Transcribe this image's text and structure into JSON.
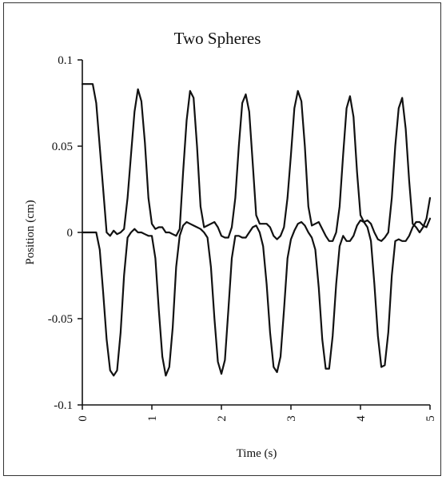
{
  "chart_data": {
    "type": "line",
    "title": "Two Spheres",
    "xlabel": "Time (s)",
    "ylabel": "Position (cm)",
    "xlim": [
      0,
      5
    ],
    "ylim": [
      -0.1,
      0.1
    ],
    "x_ticks": [
      0,
      1,
      2,
      3,
      4,
      5
    ],
    "x_tick_labels": [
      "0",
      "1",
      "2",
      "3",
      "4",
      "5"
    ],
    "y_ticks": [
      0.1,
      0.05,
      0,
      -0.05,
      -0.1
    ],
    "y_tick_labels": [
      "0.1",
      "0.05",
      "0",
      "-0.05",
      "-0.1"
    ],
    "grid": false,
    "line_color": "#111111",
    "series": [
      {
        "x": [
          0,
          0.15,
          0.2,
          0.3,
          0.35,
          0.4,
          0.45,
          0.5,
          0.55,
          0.6,
          0.65,
          0.7,
          0.75,
          0.8,
          0.85,
          0.9,
          0.95,
          1.0,
          1.05,
          1.1,
          1.15,
          1.2,
          1.25,
          1.3,
          1.35,
          1.4,
          1.45,
          1.5,
          1.55,
          1.6,
          1.65,
          1.7,
          1.75,
          1.8,
          1.85,
          1.9,
          1.95,
          2.0,
          2.05,
          2.1,
          2.15,
          2.2,
          2.25,
          2.3,
          2.35,
          2.4,
          2.45,
          2.5,
          2.55,
          2.6,
          2.65,
          2.7,
          2.75,
          2.8,
          2.85,
          2.9,
          2.95,
          3.0,
          3.05,
          3.1,
          3.15,
          3.2,
          3.25,
          3.3,
          3.35,
          3.4,
          3.45,
          3.5,
          3.55,
          3.6,
          3.65,
          3.7,
          3.75,
          3.8,
          3.85,
          3.9,
          3.95,
          4.0,
          4.05,
          4.1,
          4.15,
          4.2,
          4.25,
          4.3,
          4.35,
          4.4,
          4.45,
          4.5,
          4.55,
          4.6,
          4.65,
          4.7,
          4.75,
          4.8,
          4.85,
          4.9,
          4.95,
          5.0
        ],
        "y": [
          0.086,
          0.086,
          0.075,
          0.025,
          0.0,
          -0.002,
          0.001,
          -0.001,
          0.0,
          0.002,
          0.02,
          0.045,
          0.07,
          0.083,
          0.076,
          0.052,
          0.02,
          0.005,
          0.002,
          0.003,
          0.003,
          0.0,
          0.0,
          -0.001,
          -0.002,
          0.002,
          0.035,
          0.065,
          0.082,
          0.078,
          0.05,
          0.015,
          0.003,
          0.004,
          0.005,
          0.006,
          0.003,
          -0.002,
          -0.003,
          -0.003,
          0.003,
          0.02,
          0.05,
          0.075,
          0.08,
          0.07,
          0.04,
          0.01,
          0.005,
          0.005,
          0.005,
          0.003,
          -0.002,
          -0.004,
          -0.002,
          0.003,
          0.02,
          0.045,
          0.072,
          0.082,
          0.076,
          0.05,
          0.015,
          0.004,
          0.005,
          0.006,
          0.002,
          -0.002,
          -0.005,
          -0.005,
          0.0,
          0.015,
          0.045,
          0.072,
          0.079,
          0.067,
          0.035,
          0.01,
          0.006,
          0.007,
          0.005,
          0.0,
          -0.004,
          -0.005,
          -0.003,
          0.0,
          0.02,
          0.05,
          0.072,
          0.078,
          0.06,
          0.03,
          0.005,
          0.003,
          0.0,
          0.003,
          0.008,
          0.02
        ]
      },
      {
        "x": [
          0,
          0.2,
          0.25,
          0.3,
          0.35,
          0.4,
          0.45,
          0.5,
          0.55,
          0.6,
          0.65,
          0.7,
          0.75,
          0.8,
          0.85,
          0.9,
          0.95,
          1.0,
          1.05,
          1.1,
          1.15,
          1.2,
          1.25,
          1.3,
          1.35,
          1.4,
          1.45,
          1.5,
          1.55,
          1.6,
          1.65,
          1.7,
          1.75,
          1.8,
          1.85,
          1.9,
          1.95,
          2.0,
          2.05,
          2.1,
          2.15,
          2.2,
          2.25,
          2.3,
          2.35,
          2.4,
          2.45,
          2.5,
          2.55,
          2.6,
          2.65,
          2.7,
          2.75,
          2.8,
          2.85,
          2.9,
          2.95,
          3.0,
          3.05,
          3.1,
          3.15,
          3.2,
          3.25,
          3.3,
          3.35,
          3.4,
          3.45,
          3.5,
          3.55,
          3.6,
          3.65,
          3.7,
          3.75,
          3.8,
          3.85,
          3.9,
          3.95,
          4.0,
          4.05,
          4.1,
          4.15,
          4.2,
          4.25,
          4.3,
          4.35,
          4.4,
          4.45,
          4.5,
          4.55,
          4.6,
          4.65,
          4.7,
          4.75,
          4.8,
          4.85,
          4.9,
          4.95,
          5.0
        ],
        "y": [
          0.0,
          0.0,
          -0.01,
          -0.035,
          -0.062,
          -0.08,
          -0.083,
          -0.08,
          -0.058,
          -0.025,
          -0.003,
          0.0,
          0.002,
          0.0,
          0.0,
          -0.001,
          -0.002,
          -0.002,
          -0.015,
          -0.045,
          -0.072,
          -0.083,
          -0.078,
          -0.055,
          -0.02,
          -0.002,
          0.004,
          0.006,
          0.005,
          0.004,
          0.003,
          0.002,
          0.0,
          -0.003,
          -0.02,
          -0.05,
          -0.075,
          -0.082,
          -0.074,
          -0.045,
          -0.015,
          -0.002,
          -0.002,
          -0.003,
          -0.003,
          0.0,
          0.003,
          0.004,
          0.0,
          -0.008,
          -0.03,
          -0.058,
          -0.078,
          -0.081,
          -0.072,
          -0.045,
          -0.015,
          -0.004,
          0.001,
          0.005,
          0.006,
          0.004,
          0.0,
          -0.003,
          -0.01,
          -0.032,
          -0.062,
          -0.079,
          -0.079,
          -0.06,
          -0.03,
          -0.008,
          -0.002,
          -0.005,
          -0.005,
          -0.002,
          0.004,
          0.007,
          0.006,
          0.003,
          -0.005,
          -0.03,
          -0.06,
          -0.078,
          -0.077,
          -0.058,
          -0.025,
          -0.005,
          -0.004,
          -0.005,
          -0.005,
          -0.002,
          0.003,
          0.006,
          0.006,
          0.004,
          0.003,
          0.008
        ]
      }
    ]
  }
}
